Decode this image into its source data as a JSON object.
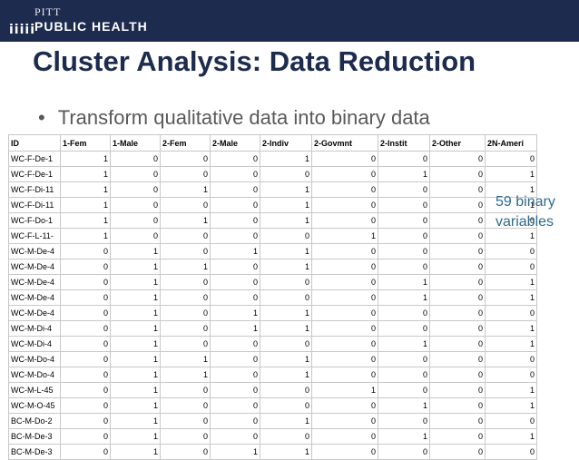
{
  "logo": {
    "top": "PITT",
    "bottom": "PUBLIC HEALTH",
    "bars": "iiiii"
  },
  "title": "Cluster Analysis: Data Reduction",
  "bullet": "Transform qualitative data into binary data",
  "table": {
    "headers": [
      "ID",
      "1-Fem",
      "1-Male",
      "2-Fem",
      "2-Male",
      "2-Indiv",
      "2-Govmnt",
      "2-Instit",
      "2-Other",
      "2N-Ameri"
    ],
    "rows": [
      [
        "WC-F-De-1",
        "1",
        "0",
        "0",
        "0",
        "1",
        "0",
        "0",
        "0",
        "0"
      ],
      [
        "WC-F-De-1",
        "1",
        "0",
        "0",
        "0",
        "0",
        "0",
        "1",
        "0",
        "1"
      ],
      [
        "WC-F-Di-11",
        "1",
        "0",
        "1",
        "0",
        "1",
        "0",
        "0",
        "0",
        "1"
      ],
      [
        "WC-F-Di-11",
        "1",
        "0",
        "0",
        "0",
        "1",
        "0",
        "0",
        "0",
        "1"
      ],
      [
        "WC-F-Do-1",
        "1",
        "0",
        "1",
        "0",
        "1",
        "0",
        "0",
        "0",
        "0"
      ],
      [
        "WC-F-L-11-",
        "1",
        "0",
        "0",
        "0",
        "0",
        "1",
        "0",
        "0",
        "1"
      ],
      [
        "WC-M-De-4",
        "0",
        "1",
        "0",
        "1",
        "1",
        "0",
        "0",
        "0",
        "0"
      ],
      [
        "WC-M-De-4",
        "0",
        "1",
        "1",
        "0",
        "1",
        "0",
        "0",
        "0",
        "0"
      ],
      [
        "WC-M-De-4",
        "0",
        "1",
        "0",
        "0",
        "0",
        "0",
        "1",
        "0",
        "1"
      ],
      [
        "WC-M-De-4",
        "0",
        "1",
        "0",
        "0",
        "0",
        "0",
        "1",
        "0",
        "1"
      ],
      [
        "WC-M-De-4",
        "0",
        "1",
        "0",
        "1",
        "1",
        "0",
        "0",
        "0",
        "0"
      ],
      [
        "WC-M-Di-4",
        "0",
        "1",
        "0",
        "1",
        "1",
        "0",
        "0",
        "0",
        "1"
      ],
      [
        "WC-M-Di-4",
        "0",
        "1",
        "0",
        "0",
        "0",
        "0",
        "1",
        "0",
        "1"
      ],
      [
        "WC-M-Do-4",
        "0",
        "1",
        "1",
        "0",
        "1",
        "0",
        "0",
        "0",
        "0"
      ],
      [
        "WC-M-Do-4",
        "0",
        "1",
        "1",
        "0",
        "1",
        "0",
        "0",
        "0",
        "0"
      ],
      [
        "WC-M-L-45",
        "0",
        "1",
        "0",
        "0",
        "0",
        "1",
        "0",
        "0",
        "1"
      ],
      [
        "WC-M-O-45",
        "0",
        "1",
        "0",
        "0",
        "0",
        "0",
        "1",
        "0",
        "1"
      ],
      [
        "BC-M-Do-2",
        "0",
        "1",
        "0",
        "0",
        "1",
        "0",
        "0",
        "0",
        "0"
      ],
      [
        "BC-M-De-3",
        "0",
        "1",
        "0",
        "0",
        "0",
        "0",
        "1",
        "0",
        "1"
      ],
      [
        "BC-M-De-3",
        "0",
        "1",
        "0",
        "1",
        "1",
        "0",
        "0",
        "0",
        "0"
      ]
    ]
  },
  "side_note": {
    "line1": "59 binary",
    "line2": "variables"
  },
  "colors": {
    "header_bg": "#1c2b4e",
    "title": "#1c2b4e",
    "bullet": "#595959",
    "side_note": "#2e6b8f",
    "grid": "#c8c8c8"
  }
}
